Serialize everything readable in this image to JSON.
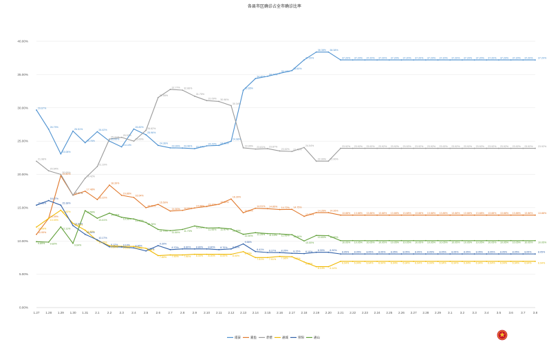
{
  "chart_data": {
    "type": "line",
    "title": "各县市区确诊占全市确诊比率",
    "xlabel": "",
    "ylabel": "",
    "ylim": [
      0,
      40
    ],
    "y_ticks": [
      "0.00%",
      "5.00%",
      "10.00%",
      "15.00%",
      "20.00%",
      "25.00%",
      "30.00%",
      "35.00%",
      "40.00%"
    ],
    "grid": "horizontal",
    "legend_position": "bottom",
    "categories": [
      "1.27",
      "1.28",
      "1.29",
      "1.30",
      "1.31",
      "2.1",
      "2.2",
      "2.3",
      "2.4",
      "2.5",
      "2.6",
      "2.7",
      "2.8",
      "2.9",
      "2.10",
      "2.11",
      "2.12",
      "2.13",
      "2.14",
      "2.15",
      "2.16",
      "2.17",
      "2.18",
      "2.19",
      "2.20",
      "2.21",
      "2.22",
      "2.23",
      "2.24",
      "2.25",
      "2.26",
      "2.27",
      "2.28",
      "2.29",
      "3.1",
      "3.2",
      "3.3",
      "3.4",
      "3.5",
      "3.6",
      "3.7",
      "3.8"
    ],
    "series": [
      {
        "name": "咸安",
        "color": "#4a8fcf",
        "values": [
          29.67,
          26.79,
          23.08,
          26.51,
          24.76,
          26.42,
          25.0,
          24.14,
          26.82,
          25.96,
          24.36,
          23.99,
          23.96,
          23.87,
          24.29,
          24.36,
          24.98,
          32.65,
          34.4,
          34.74,
          35.19,
          35.6,
          37.2,
          38.38,
          38.38,
          37.2,
          37.2,
          37.2,
          37.2,
          37.2,
          37.2,
          37.2,
          37.2,
          37.2,
          37.2,
          37.2,
          37.2,
          37.2,
          37.2,
          37.2,
          37.2,
          37.2
        ],
        "labels": [
          "29.67%",
          "26.79%",
          "23.08%",
          "26.51%",
          "24.76%",
          "26.42%",
          "25.00%",
          "24.14%",
          "26.82%",
          "25.96%",
          "24.36%",
          "23.99%",
          "23.96%",
          "23.87%",
          "24.29%",
          "24.36%",
          "24.98%",
          "32.65%",
          "34.40%",
          "34.74%",
          "35.19%",
          "35.60%",
          "37.20%",
          "38.38%",
          "38.38%",
          "37.20%",
          "37.20%",
          "37.20%",
          "37.20%",
          "37.20%",
          "37.20%",
          "37.20%",
          "37.20%",
          "37.20%",
          "37.20%",
          "37.20%",
          "37.20%",
          "37.20%",
          "37.20%",
          "37.20%",
          "37.20%",
          "37.20%"
        ]
      },
      {
        "name": "嘉鱼",
        "color": "#e0772a",
        "values": [
          10.99,
          13.39,
          19.8,
          16.87,
          17.48,
          16.22,
          18.39,
          16.86,
          16.54,
          15.0,
          15.5,
          14.5,
          14.6,
          14.96,
          15.2,
          15.52,
          16.3,
          14.24,
          14.91,
          14.85,
          14.72,
          14.75,
          13.7,
          14.26,
          14.26,
          13.88,
          13.88,
          13.88,
          13.88,
          13.88,
          13.88,
          13.88,
          13.88,
          13.88,
          13.88,
          13.88,
          13.88,
          13.88,
          13.88,
          13.88,
          13.88,
          13.88
        ],
        "labels": [
          "10.99%",
          "13.39%",
          "19.80%",
          "16.87%",
          "17.48%",
          "16.22%",
          "18.39%",
          "16.86%",
          "16.54%",
          "15.00%",
          "15.50%",
          "14.50%",
          "14.60%",
          "14.96%",
          "15.20%",
          "15.52%",
          "16.30%",
          "14.24%",
          "14.91%",
          "14.85%",
          "14.72%",
          "14.75%",
          "13.70%",
          "14.26%",
          "14.26%",
          "13.88%",
          "13.88%",
          "13.88%",
          "13.88%",
          "13.88%",
          "13.88%",
          "13.88%",
          "13.88%",
          "13.88%",
          "13.88%",
          "13.88%",
          "13.88%",
          "13.88%",
          "13.88%",
          "13.88%",
          "13.88%",
          "13.88%"
        ]
      },
      {
        "name": "赤壁",
        "color": "#9a9a9a",
        "values": [
          21.98,
          20.54,
          20.0,
          16.87,
          19.42,
          21.19,
          25.31,
          25.57,
          25.0,
          26.62,
          31.55,
          32.77,
          32.66,
          31.75,
          31.09,
          30.96,
          30.34,
          23.99,
          23.81,
          23.87,
          23.52,
          23.45,
          24.04,
          22.0,
          22.0,
          23.92,
          23.92,
          23.92,
          23.92,
          23.92,
          23.92,
          23.92,
          23.92,
          23.92,
          23.92,
          23.92,
          23.92,
          23.92,
          23.92,
          23.92,
          23.92,
          23.92
        ],
        "labels": [
          "21.98%",
          "20.54%",
          "20.00%",
          "16.87%",
          "19.42%",
          "21.19%",
          "25.31%",
          "25.57%",
          "25.00%",
          "26.62%",
          "31.55%",
          "32.77%",
          "32.66%",
          "31.75%",
          "31.09%",
          "30.96%",
          "30.34%",
          "23.99%",
          "23.81%",
          "23.87%",
          "23.52%",
          "23.45%",
          "24.04%",
          "22.00%",
          "22.00%",
          "23.92%",
          "23.92%",
          "23.92%",
          "23.92%",
          "23.92%",
          "23.92%",
          "23.92%",
          "23.92%",
          "23.92%",
          "23.92%",
          "23.92%",
          "23.92%",
          "23.92%",
          "23.92%",
          "23.92%",
          "23.92%",
          "23.92%"
        ]
      },
      {
        "name": "通城",
        "color": "#f0b800",
        "values": [
          12.09,
          13.39,
          14.62,
          12.65,
          11.62,
          10.05,
          9.3,
          9.2,
          9.18,
          8.9,
          7.8,
          7.9,
          7.9,
          8.0,
          8.0,
          8.0,
          8.0,
          8.4,
          7.51,
          7.51,
          7.68,
          7.63,
          6.85,
          6.14,
          6.14,
          6.94,
          6.94,
          6.94,
          6.94,
          6.94,
          6.94,
          6.94,
          6.94,
          6.94,
          6.94,
          6.94,
          6.94,
          6.94,
          6.94,
          6.94,
          6.94,
          6.94
        ],
        "labels": [
          "12.09%",
          "13.39%",
          "14.62%",
          "12.65%",
          "11.62%",
          "10.05%",
          "9.30%",
          "9.20%",
          "9.18%",
          "8.90%",
          "7.80%",
          "7.90%",
          "7.90%",
          "8.00%",
          "8.00%",
          "8.00%",
          "8.00%",
          "8.40%",
          "7.51%",
          "7.51%",
          "7.68%",
          "7.63%",
          "6.85%",
          "6.14%",
          "6.14%",
          "6.94%",
          "6.94%",
          "6.94%",
          "6.94%",
          "6.94%",
          "6.94%",
          "6.94%",
          "6.94%",
          "6.94%",
          "6.94%",
          "6.94%",
          "6.94%",
          "6.94%",
          "6.94%",
          "6.94%",
          "6.94%",
          "6.94%"
        ]
      },
      {
        "name": "崇阳",
        "color": "#2f5fa7",
        "values": [
          15.38,
          16.07,
          15.38,
          12.31,
          11.0,
          10.17,
          9.12,
          9.1,
          8.96,
          8.5,
          9.3,
          8.7,
          8.8,
          8.8,
          8.8,
          8.7,
          8.8,
          9.56,
          8.41,
          8.27,
          8.26,
          8.15,
          8.1,
          8.3,
          8.3,
          8.05,
          8.05,
          8.05,
          8.05,
          8.05,
          8.05,
          8.05,
          8.05,
          8.05,
          8.05,
          8.05,
          8.05,
          8.05,
          8.05,
          8.05,
          8.05,
          8.05
        ],
        "labels": [
          "15.38%",
          "16.07%",
          "15.38%",
          "12.31%",
          "11.00%",
          "10.17%",
          "9.12%",
          "9.10%",
          "8.96%",
          "8.50%",
          "9.30%",
          "8.70%",
          "8.80%",
          "8.80%",
          "8.80%",
          "8.70%",
          "8.80%",
          "9.56%",
          "8.41%",
          "8.27%",
          "8.26%",
          "8.15%",
          "8.10%",
          "8.30%",
          "8.30%",
          "8.05%",
          "8.05%",
          "8.05%",
          "8.05%",
          "8.05%",
          "8.05%",
          "8.05%",
          "8.05%",
          "8.05%",
          "8.05%",
          "8.05%",
          "8.05%",
          "8.05%",
          "8.05%",
          "8.05%",
          "8.05%",
          "8.05%"
        ]
      },
      {
        "name": "通山",
        "color": "#5e9e36",
        "values": [
          9.89,
          9.82,
          12.11,
          9.64,
          14.56,
          13.41,
          14.18,
          13.56,
          13.3,
          12.78,
          11.73,
          11.55,
          11.73,
          12.25,
          11.95,
          11.97,
          11.8,
          11.0,
          11.25,
          11.1,
          11.06,
          10.94,
          10.0,
          10.83,
          10.8,
          10.05,
          10.05,
          10.05,
          10.05,
          10.05,
          10.05,
          10.05,
          10.05,
          10.05,
          10.05,
          10.05,
          10.05,
          10.05,
          10.05,
          10.05,
          10.05,
          10.05
        ],
        "labels": [
          "9.89%",
          "9.82%",
          "12.11%",
          "9.64%",
          "14.56%",
          "13.41%",
          "14.18%",
          "13.56%",
          "13.30%",
          "12.78%",
          "11.73%",
          "11.55%",
          "11.73%",
          "12.25%",
          "11.95%",
          "11.97%",
          "11.80%",
          "11.00%",
          "11.25%",
          "11.10%",
          "11.06%",
          "10.94%",
          "10.00%",
          "10.83%",
          "10.80%",
          "10.05%",
          "10.05%",
          "10.05%",
          "10.05%",
          "10.05%",
          "10.05%",
          "10.05%",
          "10.05%",
          "10.05%",
          "10.05%",
          "10.05%",
          "10.05%",
          "10.05%",
          "10.05%",
          "10.05%",
          "10.05%",
          "10.05%"
        ]
      }
    ]
  }
}
